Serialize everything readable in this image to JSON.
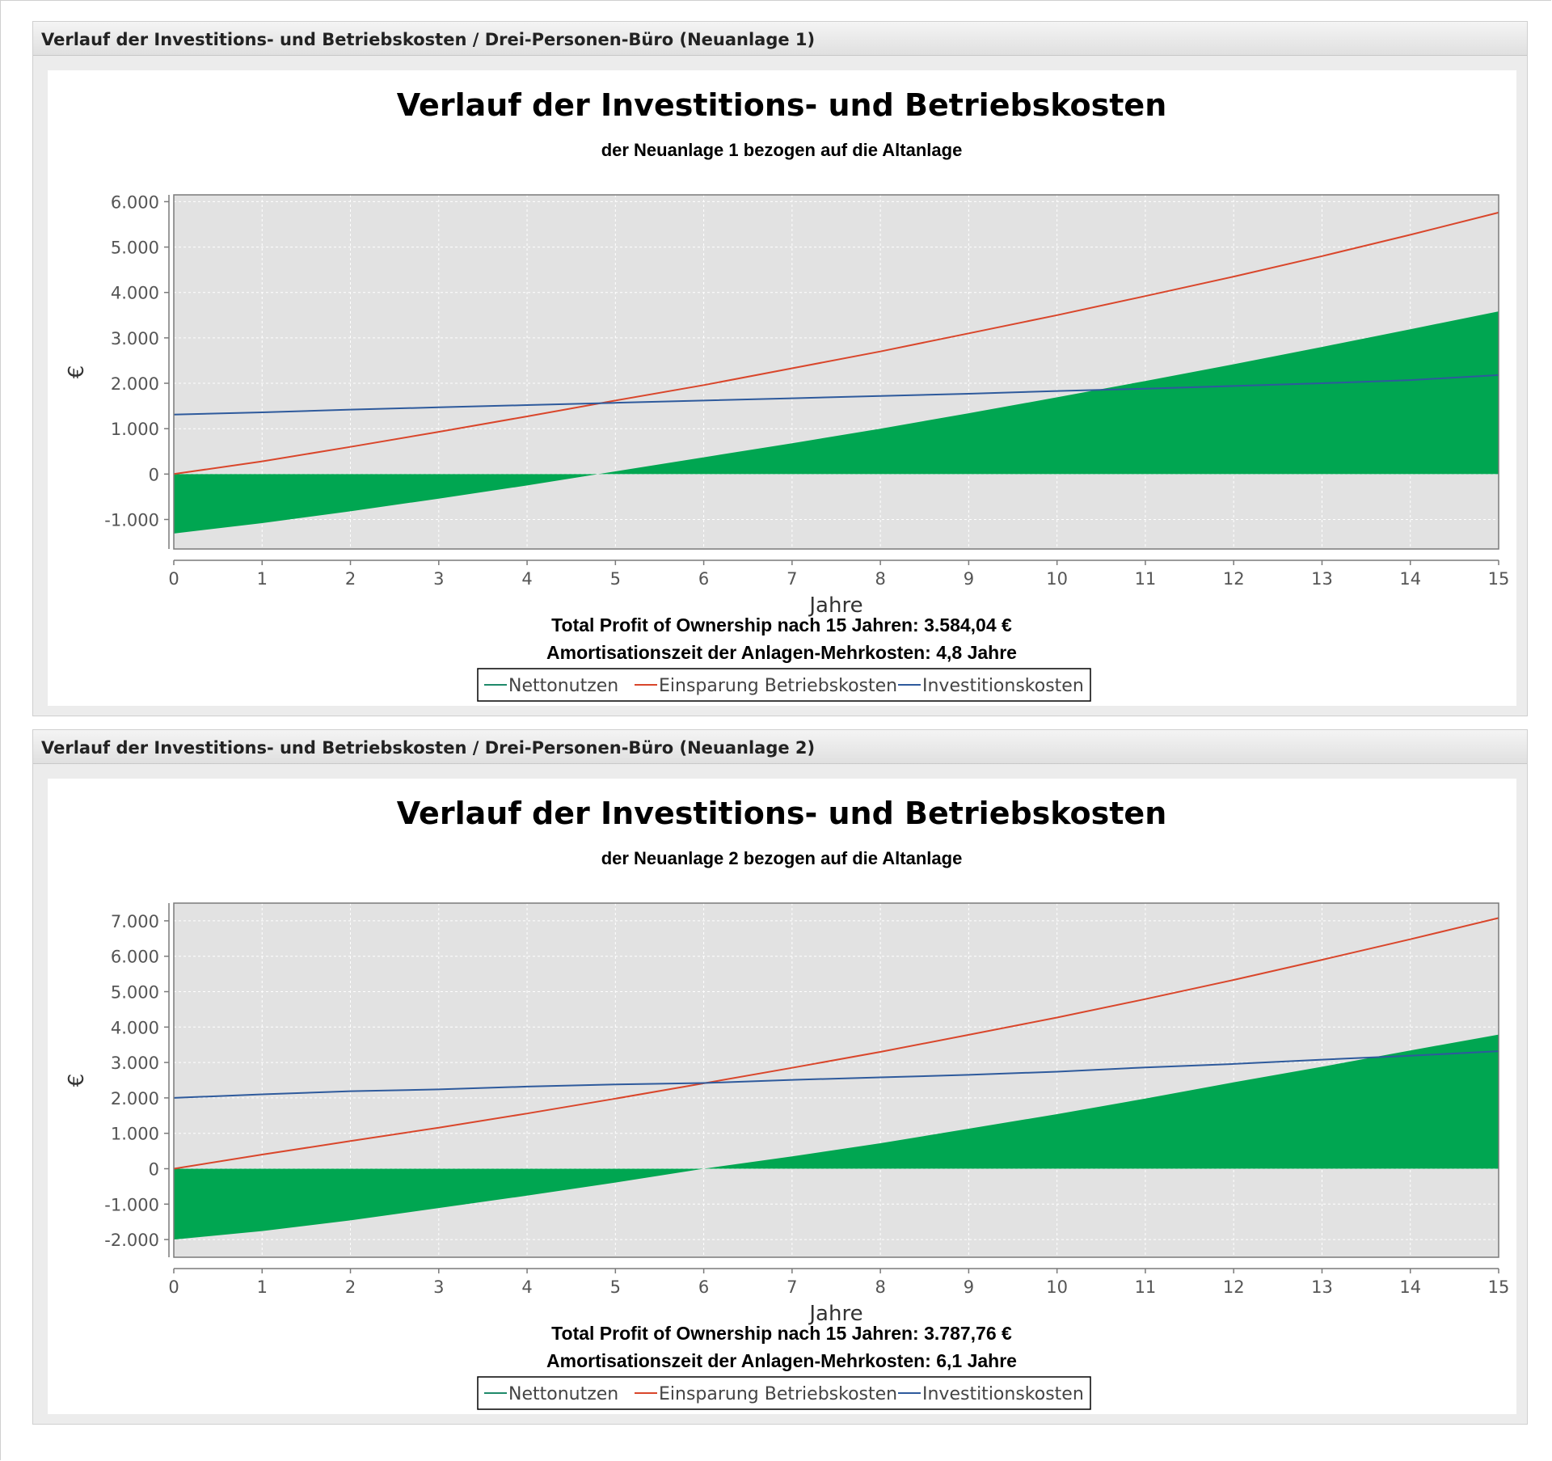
{
  "panels": [
    {
      "header_title": "Verlauf der Investitions- und Betriebskosten / Drei-Personen-Büro (Neuanlage 1)",
      "chart": {
        "type": "area",
        "title": "Verlauf der Investitions- und Betriebskosten",
        "subtitle": "der Neuanlage 1 bezogen auf die Altanlage",
        "xlabel": "Jahre",
        "ylabel": "€",
        "xlim": [
          0,
          15
        ],
        "ylim": [
          -1650,
          6150
        ],
        "xticks": [
          0,
          1,
          2,
          3,
          4,
          5,
          6,
          7,
          8,
          9,
          10,
          11,
          12,
          13,
          14,
          15
        ],
        "yticks": [
          -1000,
          0,
          1000,
          2000,
          3000,
          4000,
          5000,
          6000
        ],
        "ytick_labels": [
          "-1.000",
          "0",
          "1.000",
          "2.000",
          "3.000",
          "4.000",
          "5.000",
          "6.000"
        ],
        "grid": true,
        "x": [
          0,
          1,
          2,
          3,
          4,
          5,
          6,
          7,
          8,
          9,
          10,
          11,
          12,
          13,
          14,
          15
        ],
        "series": [
          {
            "name": "Nettonutzen",
            "render": "area",
            "color": "#00a651",
            "values": [
              -1310,
              -1080,
              -820,
              -540,
              -250,
              60,
              370,
              680,
              1000,
              1340,
              1690,
              2050,
              2420,
              2800,
              3190,
              3584
            ]
          },
          {
            "name": "Einsparung Betriebskosten",
            "render": "line",
            "color": "#d9462b",
            "values": [
              0,
              280,
              600,
              930,
              1270,
              1620,
              1960,
              2330,
              2700,
              3100,
              3500,
              3920,
              4350,
              4800,
              5270,
              5760
            ]
          },
          {
            "name": "Investitionskosten",
            "render": "line",
            "color": "#2e5a9c",
            "values": [
              1310,
              1360,
              1420,
              1470,
              1520,
              1570,
              1620,
              1670,
              1720,
              1770,
              1830,
              1880,
              1940,
              2000,
              2070,
              2180
            ]
          }
        ],
        "legend_swatch_color": "#1f8a6a",
        "legend_location": "bottom",
        "summary_line1": "Total Profit of Ownership nach 15 Jahren: 3.584,04 €",
        "summary_line2": "Amortisationszeit der Anlagen-Mehrkosten: 4,8 Jahre"
      }
    },
    {
      "header_title": "Verlauf der Investitions- und Betriebskosten / Drei-Personen-Büro (Neuanlage 2)",
      "chart": {
        "type": "area",
        "title": "Verlauf der Investitions- und Betriebskosten",
        "subtitle": "der Neuanlage 2 bezogen auf die Altanlage",
        "xlabel": "Jahre",
        "ylabel": "€",
        "xlim": [
          0,
          15
        ],
        "ylim": [
          -2500,
          7500
        ],
        "xticks": [
          0,
          1,
          2,
          3,
          4,
          5,
          6,
          7,
          8,
          9,
          10,
          11,
          12,
          13,
          14,
          15
        ],
        "yticks": [
          -2000,
          -1000,
          0,
          1000,
          2000,
          3000,
          4000,
          5000,
          6000,
          7000
        ],
        "ytick_labels": [
          "-2.000",
          "-1.000",
          "0",
          "1.000",
          "2.000",
          "3.000",
          "4.000",
          "5.000",
          "6.000",
          "7.000"
        ],
        "grid": true,
        "x": [
          0,
          1,
          2,
          3,
          4,
          5,
          6,
          7,
          8,
          9,
          10,
          11,
          12,
          13,
          14,
          15
        ],
        "series": [
          {
            "name": "Nettonutzen",
            "render": "area",
            "color": "#00a651",
            "values": [
              -2000,
              -1760,
              -1460,
              -1110,
              -760,
              -390,
              0,
              350,
              720,
              1130,
              1540,
              1980,
              2440,
              2880,
              3340,
              3788
            ]
          },
          {
            "name": "Einsparung Betriebskosten",
            "render": "line",
            "color": "#d9462b",
            "values": [
              0,
              400,
              780,
              1160,
              1560,
              1980,
              2410,
              2850,
              3300,
              3780,
              4270,
              4790,
              5330,
              5900,
              6480,
              7080
            ]
          },
          {
            "name": "Investitionskosten",
            "render": "line",
            "color": "#2e5a9c",
            "values": [
              2000,
              2100,
              2190,
              2240,
              2320,
              2380,
              2420,
              2510,
              2580,
              2650,
              2740,
              2860,
              2960,
              3080,
              3190,
              3320
            ]
          }
        ],
        "legend_swatch_color": "#1f8a6a",
        "legend_location": "bottom",
        "summary_line1": "Total Profit of Ownership nach 15 Jahren: 3.787,76 €",
        "summary_line2": "Amortisationszeit der Anlagen-Mehrkosten: 6,1 Jahre"
      }
    }
  ]
}
